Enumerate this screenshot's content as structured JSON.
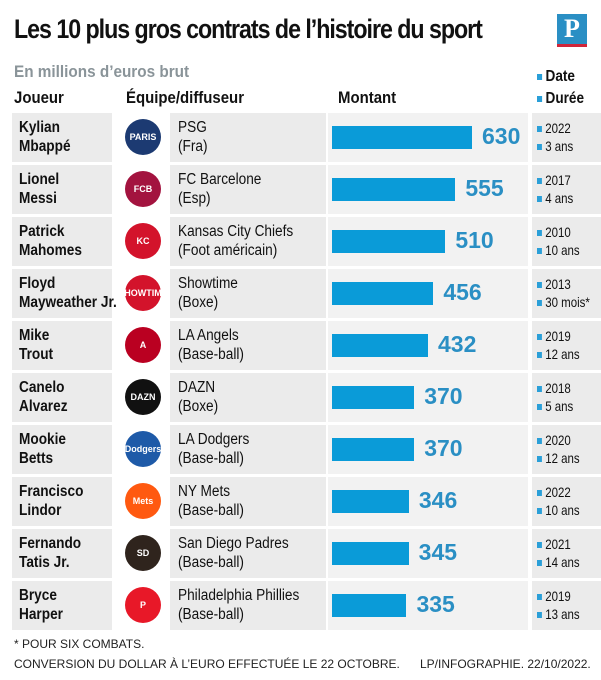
{
  "title": "Les 10 plus gros contrats de l’histoire du sport",
  "brand_logo": "P",
  "subtitle": "En millions d’euros brut",
  "headers": {
    "player": "Joueur",
    "team": "Équipe/diffuseur",
    "amount": "Montant",
    "date": "Date",
    "duration": "Durée"
  },
  "colors": {
    "bar": "#0a9bd8",
    "value": "#2a8fc4",
    "row_bg": "#ebebeb"
  },
  "chart_data": {
    "type": "bar",
    "orientation": "horizontal",
    "unit": "millions d’euros brut",
    "xlim": [
      0,
      630
    ],
    "rows": [
      {
        "player_l1": "Kylian",
        "player_l2": "Mbappé",
        "team": "PSG",
        "team_sub": "(Fra)",
        "logo": "PARIS",
        "logo_color": "#1c3a72",
        "value": 630,
        "date": "2022",
        "duration": "3 ans"
      },
      {
        "player_l1": "Lionel",
        "player_l2": "Messi",
        "team": "FC Barcelone",
        "team_sub": "(Esp)",
        "logo": "FCB",
        "logo_color": "#a3133f",
        "value": 555,
        "date": "2017",
        "duration": "4 ans"
      },
      {
        "player_l1": "Patrick",
        "player_l2": "Mahomes",
        "team": "Kansas City Chiefs",
        "team_sub": "(Foot américain)",
        "logo": "KC",
        "logo_color": "#d3132b",
        "value": 510,
        "date": "2010",
        "duration": "10 ans"
      },
      {
        "player_l1": "Floyd",
        "player_l2": "Mayweather Jr.",
        "team": "Showtime",
        "team_sub": "(Boxe)",
        "logo": "SHOWTIME",
        "logo_color": "#d3132b",
        "value": 456,
        "date": "2013",
        "duration": "30 mois*"
      },
      {
        "player_l1": "Mike",
        "player_l2": "Trout",
        "team": "LA Angels",
        "team_sub": "(Base-ball)",
        "logo": "A",
        "logo_color": "#ba0021",
        "value": 432,
        "date": "2019",
        "duration": "12 ans"
      },
      {
        "player_l1": "Canelo",
        "player_l2": "Alvarez",
        "team": "DAZN",
        "team_sub": "(Boxe)",
        "logo": "DAZN",
        "logo_color": "#111111",
        "value": 370,
        "date": "2018",
        "duration": "5 ans"
      },
      {
        "player_l1": "Mookie",
        "player_l2": "Betts",
        "team": "LA Dodgers",
        "team_sub": "(Base-ball)",
        "logo": "Dodgers",
        "logo_color": "#1e5aa8",
        "value": 370,
        "date": "2020",
        "duration": "12 ans"
      },
      {
        "player_l1": "Francisco",
        "player_l2": "Lindor",
        "team": "NY Mets",
        "team_sub": "(Base-ball)",
        "logo": "Mets",
        "logo_color": "#ff5910",
        "value": 346,
        "date": "2022",
        "duration": "10 ans"
      },
      {
        "player_l1": "Fernando",
        "player_l2": "Tatis Jr.",
        "team": "San Diego Padres",
        "team_sub": "(Base-ball)",
        "logo": "SD",
        "logo_color": "#2f241d",
        "value": 345,
        "date": "2021",
        "duration": "14 ans"
      },
      {
        "player_l1": "Bryce",
        "player_l2": "Harper",
        "team": "Philadelphia Phillies",
        "team_sub": "(Base-ball)",
        "logo": "P",
        "logo_color": "#e81828",
        "value": 335,
        "date": "2019",
        "duration": "13 ans"
      }
    ]
  },
  "footnote": "* POUR SIX COMBATS.",
  "source_note": "CONVERSION DU DOLLAR À L’EURO EFFECTUÉE LE 22 OCTOBRE.",
  "credit": "LP/INFOGRAPHIE.  22/10/2022."
}
